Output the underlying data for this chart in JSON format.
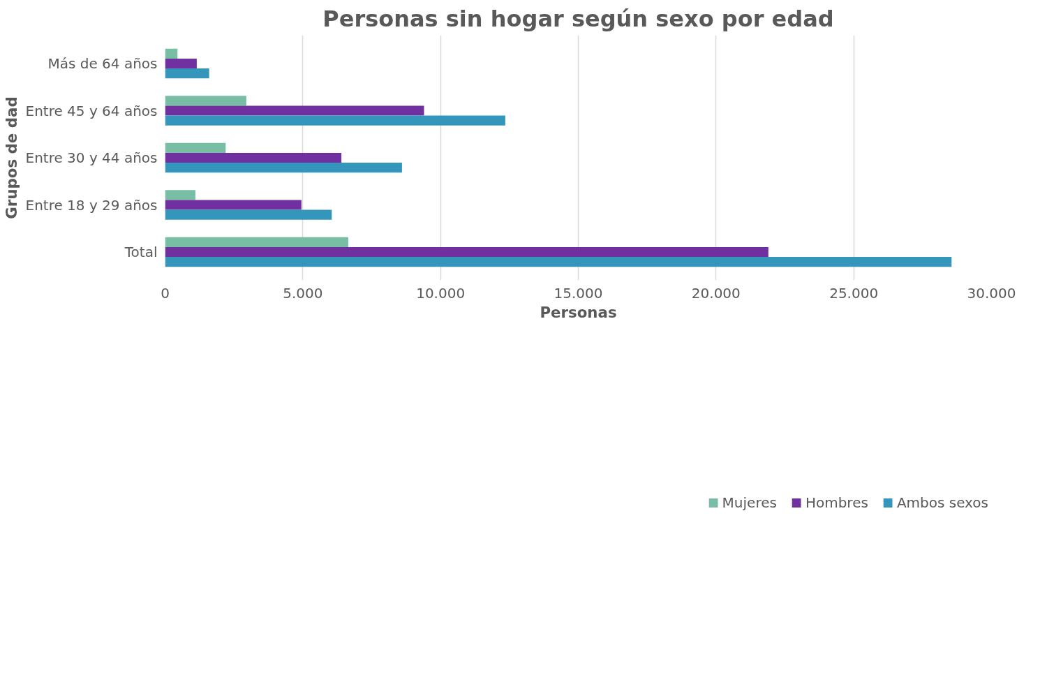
{
  "chart_data": {
    "type": "bar",
    "orientation": "horizontal",
    "title": "Personas sin hogar según sexo por edad",
    "xlabel": "Personas",
    "ylabel": "Grupos de dad",
    "categories": [
      "Más de 64 años",
      "Entre 45 y 64 años",
      "Entre 30 y 44 años",
      "Entre 18 y 29 años",
      "Total"
    ],
    "series": [
      {
        "name": "Mujeres",
        "color": "#77bea4",
        "values": [
          450,
          2950,
          2200,
          1100,
          6650
        ]
      },
      {
        "name": "Hombres",
        "color": "#7030a0",
        "values": [
          1150,
          9400,
          6400,
          4950,
          21900
        ]
      },
      {
        "name": "Ambos sexos",
        "color": "#3596bb",
        "values": [
          1600,
          12350,
          8600,
          6050,
          28550
        ]
      }
    ],
    "xlim": [
      0,
      30000
    ],
    "xticks": [
      0,
      {
        "value": 5000,
        "label": "5.000"
      },
      {
        "value": 10000,
        "label": "10.000"
      },
      {
        "value": 15000,
        "label": "15.000"
      },
      {
        "value": 20000,
        "label": "20.000"
      },
      {
        "value": 25000,
        "label": "25.000"
      },
      {
        "value": 30000,
        "label": "30.000"
      }
    ],
    "grid": "x",
    "legend": "bottom"
  }
}
